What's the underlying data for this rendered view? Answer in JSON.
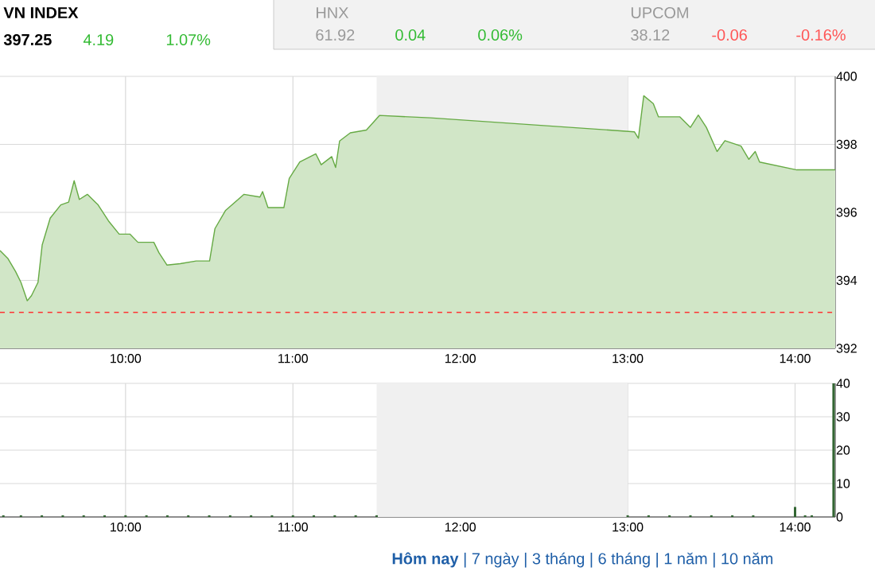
{
  "chart_data": [
    {
      "type": "area",
      "title": "VN INDEX",
      "color": "#66aa44",
      "grid": true,
      "annotations": [
        "397.25",
        "4.19",
        "1.07%",
        "HNX",
        "61.92",
        "0.04",
        "0.06%",
        "UPCOM",
        "38.12",
        "-0.06",
        "-0.16%"
      ],
      "xlim": [
        9.25,
        14.24
      ],
      "ylim": [
        392,
        400
      ],
      "xticks": [
        {
          "value": 10,
          "label": "10:00"
        },
        {
          "value": 11,
          "label": "11:00"
        },
        {
          "value": 12,
          "label": "12:00"
        },
        {
          "value": 13,
          "label": "13:00"
        },
        {
          "value": 14,
          "label": "14:00"
        }
      ],
      "yticks": [
        392,
        394,
        396,
        398,
        400
      ],
      "bands": [
        {
          "axis": "x",
          "from": 11.5,
          "to": 13,
          "color": "#f0f0f0"
        }
      ],
      "ref_lines": [
        {
          "axis": "y",
          "value": 393.06,
          "color": "#ff3333",
          "line_style": "dashed"
        }
      ],
      "x": [
        9.25,
        9.296,
        9.343,
        9.375,
        9.413,
        9.438,
        9.477,
        9.502,
        9.55,
        9.613,
        9.66,
        9.693,
        9.724,
        9.772,
        9.836,
        9.898,
        9.962,
        10.026,
        10.074,
        10.169,
        10.2,
        10.248,
        10.327,
        10.422,
        10.502,
        10.534,
        10.598,
        10.708,
        10.803,
        10.819,
        10.851,
        10.946,
        10.978,
        11.041,
        11.137,
        11.169,
        11.232,
        11.255,
        11.279,
        11.343,
        11.439,
        11.517,
        11.82,
        13.04,
        13.064,
        13.096,
        13.153,
        13.184,
        13.312,
        13.375,
        13.422,
        13.47,
        13.534,
        13.581,
        13.677,
        13.724,
        13.762,
        13.788,
        14.01,
        14.24
      ],
      "values": [
        394.88,
        394.65,
        394.26,
        393.94,
        393.4,
        393.55,
        393.94,
        395.04,
        395.83,
        396.22,
        396.3,
        396.93,
        396.38,
        396.53,
        396.22,
        395.75,
        395.36,
        395.36,
        395.12,
        395.12,
        394.81,
        394.45,
        394.49,
        394.57,
        394.57,
        395.52,
        396.06,
        396.53,
        396.45,
        396.61,
        396.14,
        396.14,
        397.0,
        397.48,
        397.72,
        397.4,
        397.64,
        397.32,
        398.1,
        398.34,
        398.42,
        398.85,
        398.78,
        398.37,
        398.18,
        399.43,
        399.2,
        398.81,
        398.81,
        398.5,
        398.86,
        398.5,
        397.79,
        398.11,
        397.95,
        397.56,
        397.79,
        397.48,
        397.25,
        397.25
      ]
    },
    {
      "type": "bar",
      "color": "#336633",
      "grid": true,
      "annotations": [
        "**Hôm nay** | 7 ngày | 3 tháng | 6 tháng | 1 năm | 10 năm"
      ],
      "xlim": [
        9.25,
        14.24
      ],
      "ylim": [
        0,
        40
      ],
      "xticks": [
        {
          "value": 10,
          "label": "10:00"
        },
        {
          "value": 11,
          "label": "11:00"
        },
        {
          "value": 12,
          "label": "12:00"
        },
        {
          "value": 13,
          "label": "13:00"
        },
        {
          "value": 14,
          "label": "14:00"
        }
      ],
      "yticks": [
        0,
        10,
        20,
        30,
        40
      ],
      "bands": [
        {
          "axis": "x",
          "from": 11.5,
          "to": 13,
          "color": "#f0f0f0"
        }
      ],
      "x": [
        9.27,
        9.375,
        9.5,
        9.625,
        9.75,
        9.875,
        10,
        10.125,
        10.25,
        10.375,
        10.5,
        10.625,
        10.75,
        10.875,
        11,
        11.125,
        11.25,
        11.375,
        11.5,
        13,
        13.125,
        13.25,
        13.375,
        13.5,
        13.625,
        13.75,
        14.0,
        14.06,
        14.1,
        14.23
      ],
      "values": [
        0.5,
        0.5,
        0.5,
        0.5,
        0.5,
        0.5,
        0.5,
        0.5,
        0.5,
        0.5,
        0.5,
        0.5,
        0.5,
        0.5,
        0.5,
        0.5,
        0.5,
        0.5,
        0.5,
        0.5,
        0.5,
        0.5,
        0.5,
        0.5,
        0.5,
        0.5,
        3,
        0.5,
        0.5,
        40
      ]
    }
  ]
}
